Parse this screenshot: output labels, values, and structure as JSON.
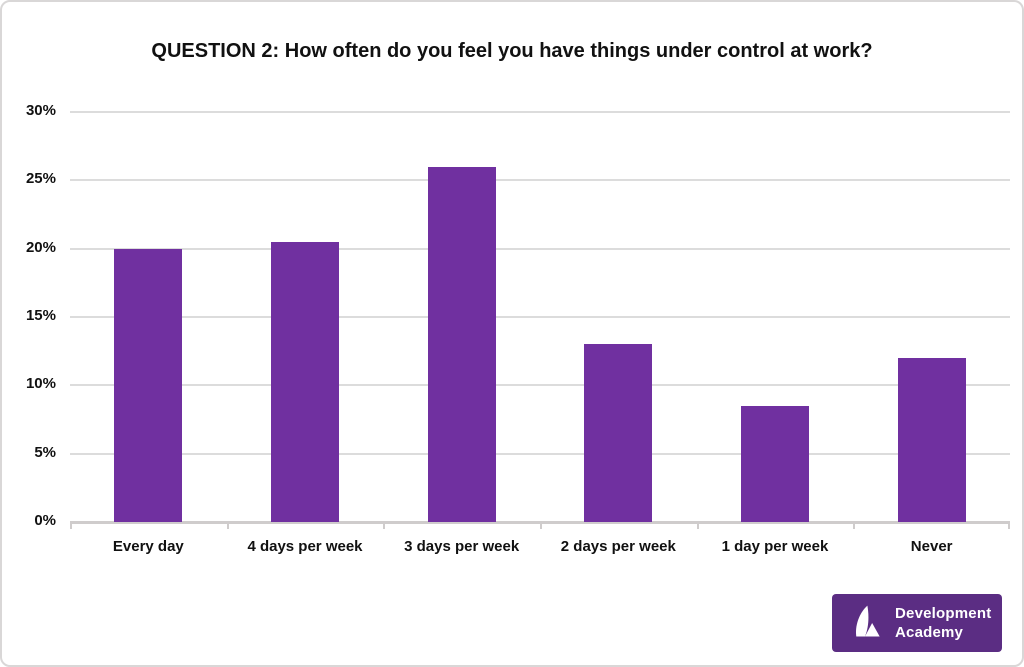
{
  "chart_data": {
    "type": "bar",
    "title": "QUESTION 2: How often do you feel you have things under control at work?",
    "categories": [
      "Every day",
      "4 days per week",
      "3 days per week",
      "2 days per week",
      "1 day per week",
      "Never"
    ],
    "values": [
      20,
      20.5,
      26,
      13,
      8.5,
      12
    ],
    "unit": "%",
    "ylim": [
      0,
      30
    ],
    "ytick_step": 5,
    "ytick_labels": [
      "0%",
      "5%",
      "10%",
      "15%",
      "20%",
      "25%",
      "30%"
    ],
    "bar_color": "#7030a0",
    "gridline_color": "#dcdcdc",
    "axis_color": "#cfcccc",
    "grid": true,
    "legend": "none"
  },
  "logo": {
    "line1": "Development",
    "line2": "Academy",
    "background": "#5b2d83",
    "icon": "sail-and-triangle"
  }
}
